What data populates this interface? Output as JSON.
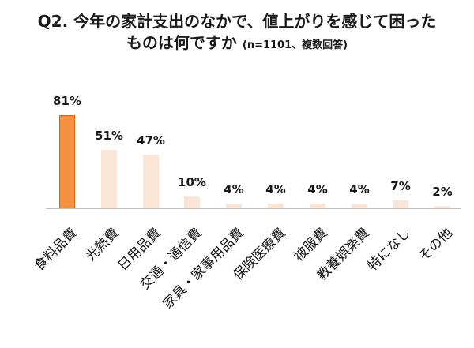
{
  "title": {
    "line1": "Q2. 今年の家計支出のなかで、値上がりを感じて困った",
    "line2_main": "ものは何ですか",
    "line2_sub": "(n=1101、複数回答)"
  },
  "colors": {
    "highlight_bar": "#f4913f",
    "highlight_border": "#d9661a",
    "other_bar": "#fbe5d4",
    "axis": "#bdbdbd"
  },
  "chart_data": {
    "type": "bar",
    "title": "Q2. 今年の家計支出のなかで、値上がりを感じて困ったものは何ですか (n=1101、複数回答)",
    "xlabel": "",
    "ylabel": "",
    "ylim": [
      0,
      100
    ],
    "grid": false,
    "legend": null,
    "categories": [
      "食料品費",
      "光熱費",
      "日用品費",
      "交通・通信費",
      "家具・家事用品費",
      "保険医療費",
      "被服費",
      "教養娯楽費",
      "特になし",
      "その他"
    ],
    "values": [
      81,
      51,
      47,
      10,
      4,
      4,
      4,
      4,
      7,
      2
    ],
    "labels": [
      "81%",
      "51%",
      "47%",
      "10%",
      "4%",
      "4%",
      "4%",
      "4%",
      "7%",
      "2%"
    ],
    "highlighted_index": 0
  }
}
